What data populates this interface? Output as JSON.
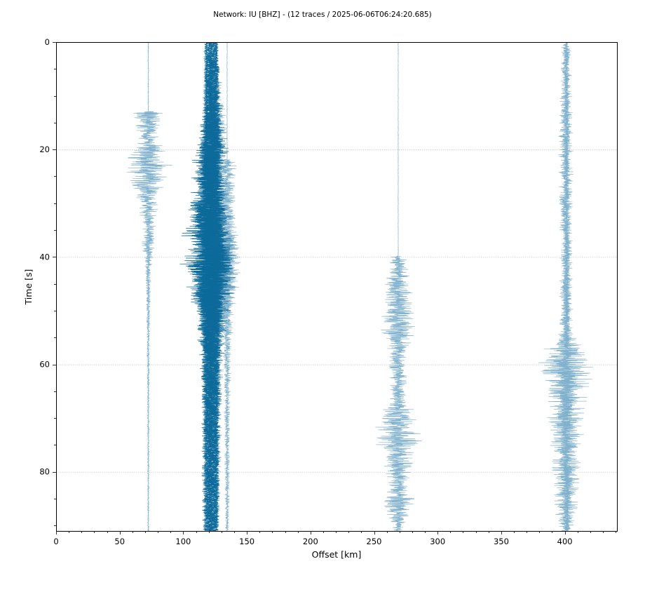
{
  "chart_data": {
    "type": "line",
    "title": "Network: IU [BHZ] - (12 traces / 2025-06-06T06:24:20.685)",
    "xlabel": "Offset [km]",
    "ylabel": "Time [s]",
    "xlim": [
      0,
      441
    ],
    "ylim": [
      0,
      91
    ],
    "y_inverted": true,
    "grid": true,
    "xticks": [
      0,
      50,
      100,
      150,
      200,
      250,
      300,
      350,
      400
    ],
    "yticks": [
      0,
      20,
      40,
      60,
      80
    ],
    "colors": {
      "light_trace": "#7fb0cc",
      "dark_trace": "#0d6a9a",
      "grid": "#cccccc",
      "axis": "#000000"
    },
    "series": [
      {
        "offset_km": 72.5,
        "style": "light",
        "max_amplitude_km": 20,
        "arrival_s": 13.0,
        "envelope": [
          [
            0,
            0.02
          ],
          [
            12.9,
            0.02
          ],
          [
            13.0,
            0.85
          ],
          [
            14.0,
            0.55
          ],
          [
            18.0,
            0.4
          ],
          [
            23.0,
            0.95
          ],
          [
            28.0,
            0.5
          ],
          [
            33.0,
            0.3
          ],
          [
            38.0,
            0.25
          ],
          [
            42.0,
            0.12
          ],
          [
            50.0,
            0.08
          ],
          [
            60.0,
            0.05
          ],
          [
            91.0,
            0.03
          ]
        ]
      },
      {
        "offset_km": 117.5,
        "style": "light",
        "max_amplitude_km": 12,
        "arrival_s": 20.0,
        "envelope": [
          [
            0,
            0.12
          ],
          [
            20.0,
            0.2
          ],
          [
            40.0,
            0.45
          ],
          [
            50.0,
            0.35
          ],
          [
            65.0,
            0.2
          ],
          [
            80.0,
            0.15
          ],
          [
            91.0,
            0.12
          ]
        ]
      },
      {
        "offset_km": 118.5,
        "style": "dark",
        "max_amplitude_km": 22,
        "arrival_s": 20.0,
        "envelope": [
          [
            0,
            0.08
          ],
          [
            19.8,
            0.08
          ],
          [
            20.0,
            0.5
          ],
          [
            25.0,
            0.55
          ],
          [
            30.0,
            0.6
          ],
          [
            38.0,
            1.0
          ],
          [
            42.0,
            0.95
          ],
          [
            46.0,
            0.7
          ],
          [
            52.0,
            0.4
          ],
          [
            60.0,
            0.25
          ],
          [
            70.0,
            0.2
          ],
          [
            80.0,
            0.18
          ],
          [
            91.0,
            0.15
          ]
        ]
      },
      {
        "offset_km": 120.5,
        "style": "dark",
        "max_amplitude_km": 18,
        "arrival_s": 21.0,
        "envelope": [
          [
            0,
            0.1
          ],
          [
            21.0,
            0.55
          ],
          [
            30.0,
            0.6
          ],
          [
            40.0,
            0.95
          ],
          [
            45.0,
            0.8
          ],
          [
            55.0,
            0.4
          ],
          [
            70.0,
            0.25
          ],
          [
            91.0,
            0.15
          ]
        ]
      },
      {
        "offset_km": 122.0,
        "style": "dark",
        "max_amplitude_km": 18,
        "arrival_s": 21.0,
        "envelope": [
          [
            0,
            0.1
          ],
          [
            21.0,
            0.55
          ],
          [
            30.0,
            0.6
          ],
          [
            40.0,
            0.95
          ],
          [
            45.0,
            0.8
          ],
          [
            55.0,
            0.4
          ],
          [
            70.0,
            0.25
          ],
          [
            91.0,
            0.15
          ]
        ]
      },
      {
        "offset_km": 124.0,
        "style": "dark",
        "max_amplitude_km": 20,
        "arrival_s": 21.0,
        "envelope": [
          [
            0,
            0.1
          ],
          [
            21.0,
            0.6
          ],
          [
            30.0,
            0.6
          ],
          [
            40.0,
            0.9
          ],
          [
            45.0,
            0.85
          ],
          [
            55.0,
            0.45
          ],
          [
            70.0,
            0.25
          ],
          [
            91.0,
            0.18
          ]
        ]
      },
      {
        "offset_km": 125.5,
        "style": "light",
        "max_amplitude_km": 20,
        "arrival_s": 21.0,
        "envelope": [
          [
            0,
            0.08
          ],
          [
            21.0,
            0.55
          ],
          [
            30.0,
            0.7
          ],
          [
            40.0,
            0.9
          ],
          [
            45.0,
            0.95
          ],
          [
            50.0,
            0.6
          ],
          [
            60.0,
            0.3
          ],
          [
            91.0,
            0.15
          ]
        ]
      },
      {
        "offset_km": 126.0,
        "style": "dark",
        "max_amplitude_km": 12,
        "arrival_s": 21.0,
        "envelope": [
          [
            0,
            0.1
          ],
          [
            21.0,
            0.5
          ],
          [
            40.0,
            0.8
          ],
          [
            55.0,
            0.4
          ],
          [
            91.0,
            0.15
          ]
        ]
      },
      {
        "offset_km": 134.5,
        "style": "light",
        "max_amplitude_km": 12,
        "arrival_s": 22.0,
        "envelope": [
          [
            0,
            0.02
          ],
          [
            21.8,
            0.02
          ],
          [
            22.0,
            0.6
          ],
          [
            30.0,
            0.55
          ],
          [
            42.0,
            0.9
          ],
          [
            50.0,
            0.5
          ],
          [
            60.0,
            0.25
          ],
          [
            70.0,
            0.2
          ],
          [
            91.0,
            0.12
          ]
        ]
      },
      {
        "offset_km": 269.0,
        "style": "light",
        "max_amplitude_km": 20,
        "arrival_s": 40.0,
        "envelope": [
          [
            0,
            0.01
          ],
          [
            39.8,
            0.01
          ],
          [
            40.0,
            0.3
          ],
          [
            45.0,
            0.5
          ],
          [
            53.0,
            0.7
          ],
          [
            60.0,
            0.35
          ],
          [
            66.0,
            0.3
          ],
          [
            70.0,
            0.85
          ],
          [
            74.0,
            0.95
          ],
          [
            78.0,
            0.6
          ],
          [
            82.0,
            0.4
          ],
          [
            86.0,
            0.7
          ],
          [
            89.0,
            0.3
          ],
          [
            91.0,
            0.2
          ]
        ]
      },
      {
        "offset_km": 401.0,
        "style": "light",
        "max_amplitude_km": 24,
        "arrival_s": 1.0,
        "envelope": [
          [
            0,
            0.05
          ],
          [
            1.0,
            0.15
          ],
          [
            20.0,
            0.25
          ],
          [
            40.0,
            0.2
          ],
          [
            55.0,
            0.25
          ],
          [
            56.0,
            0.7
          ],
          [
            61.0,
            1.0
          ],
          [
            65.0,
            0.7
          ],
          [
            72.0,
            0.6
          ],
          [
            80.0,
            0.45
          ],
          [
            88.0,
            0.35
          ],
          [
            91.0,
            0.2
          ]
        ]
      },
      {
        "offset_km": 401.5,
        "style": "light",
        "max_amplitude_km": 10,
        "arrival_s": 1.0,
        "envelope": [
          [
            0,
            0.05
          ],
          [
            1.0,
            0.2
          ],
          [
            56.0,
            0.3
          ],
          [
            61.0,
            0.8
          ],
          [
            75.0,
            0.5
          ],
          [
            91.0,
            0.25
          ]
        ]
      }
    ]
  }
}
